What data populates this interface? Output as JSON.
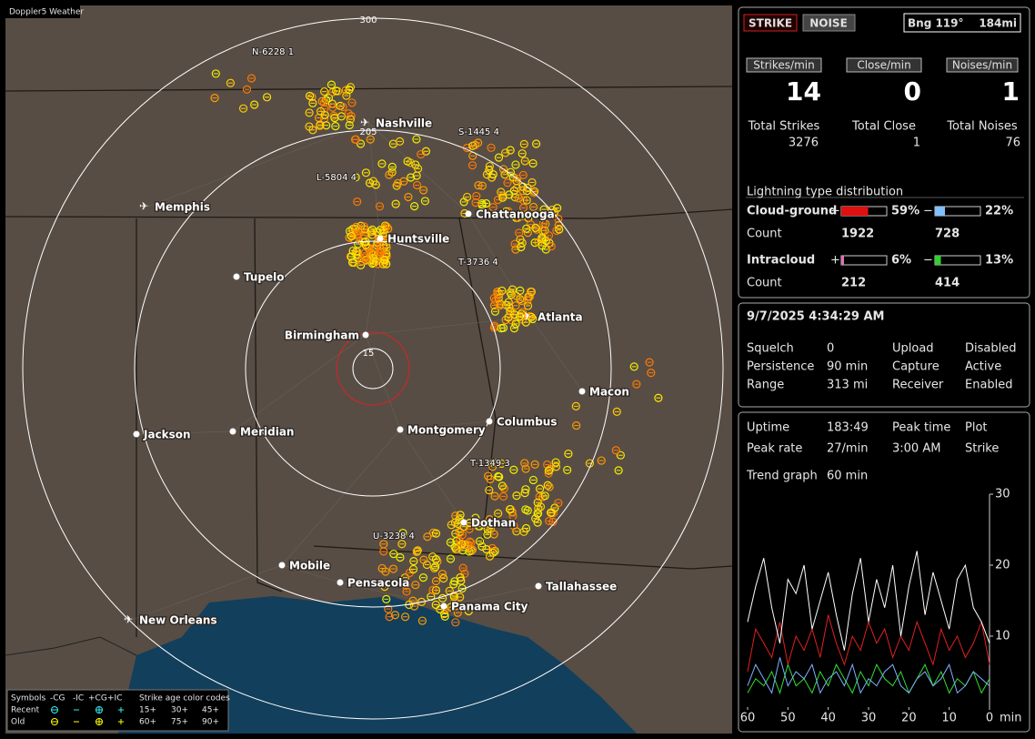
{
  "map": {
    "title": "Doppler5 Weather",
    "rings": [
      "300",
      "205",
      "15"
    ],
    "cities": [
      "Nashville",
      "Memphis",
      "Huntsville",
      "Tupelo",
      "Chattanooga",
      "Atlanta",
      "Birmingham",
      "Macon",
      "Jackson",
      "Meridian",
      "Montgomery",
      "Columbus",
      "Dothan",
      "Mobile",
      "Pensacola",
      "Panama City",
      "Tallahassee",
      "New Orleans"
    ],
    "storms": [
      "N-6228 1",
      "S-1445 4",
      "L-5804 4",
      "T-3736 4",
      "T-1349 3",
      "U-3238 4"
    ],
    "legend": {
      "symbols": "Symbols",
      "types": [
        "-CG",
        "-IC",
        "+CG",
        "+IC"
      ],
      "age_title": "Strike age color codes",
      "rows": [
        "Recent",
        "Old"
      ],
      "recent_ages": [
        "15+",
        "30+",
        "45+"
      ],
      "old_ages": [
        "60+",
        "75+",
        "90+"
      ]
    }
  },
  "mode": {
    "strike": "STRIKE",
    "noise": "NOISE",
    "bearing": "Bng 119°",
    "distance": "184mi"
  },
  "rates": {
    "labels": [
      "Strikes/min",
      "Close/min",
      "Noises/min"
    ],
    "values": [
      14,
      0,
      1
    ]
  },
  "totals": {
    "labels": [
      "Total Strikes",
      "Total Close",
      "Total Noises"
    ],
    "values": [
      3276,
      1,
      76
    ]
  },
  "distribution": {
    "title": "Lightning type distribution",
    "signs": [
      "+",
      "−"
    ],
    "count_label": "Count",
    "rows": [
      {
        "label": "Cloud-ground",
        "pos": {
          "value": 59,
          "label": "59%"
        },
        "neg": {
          "value": 22,
          "label": "22%"
        },
        "counts": [
          1922,
          728
        ]
      },
      {
        "label": "Intracloud",
        "pos": {
          "value": 6,
          "label": "6%"
        },
        "neg": {
          "value": 13,
          "label": "13%"
        },
        "counts": [
          212,
          414
        ]
      }
    ]
  },
  "status": {
    "datetime": "9/7/2025 4:34:29 AM",
    "settings": [
      [
        "Squelch",
        "0",
        "Upload",
        "Disabled"
      ],
      [
        "Persistence",
        "90 min",
        "Capture",
        "Active"
      ],
      [
        "Range",
        "313 mi",
        "Receiver",
        "Enabled"
      ]
    ]
  },
  "stats": {
    "rows": [
      [
        "Uptime",
        "183:49",
        "Peak time",
        "Plot"
      ],
      [
        "Peak rate",
        "27/min",
        "3:00 AM",
        "Strike"
      ]
    ],
    "trend_label": "Trend graph",
    "trend_span": "60 min"
  },
  "trend": {
    "ylim": [
      0,
      30
    ],
    "yticks": [
      10,
      20,
      30
    ],
    "xlim": [
      60,
      0
    ],
    "xticks": [
      60,
      50,
      40,
      30,
      20,
      10,
      0
    ],
    "x_unit": "min",
    "x": [
      60,
      58,
      56,
      54,
      52,
      50,
      48,
      46,
      44,
      42,
      40,
      38,
      36,
      34,
      32,
      30,
      28,
      26,
      24,
      22,
      20,
      18,
      16,
      14,
      12,
      10,
      8,
      6,
      4,
      2,
      0
    ],
    "series": [
      {
        "color": "#ffffff",
        "values": [
          12,
          17,
          21,
          14,
          9,
          18,
          16,
          20,
          11,
          15,
          19,
          13,
          8,
          16,
          21,
          12,
          18,
          14,
          20,
          10,
          17,
          22,
          13,
          19,
          15,
          11,
          18,
          20,
          14,
          12,
          9
        ]
      },
      {
        "color": "#e02020",
        "values": [
          5,
          11,
          9,
          7,
          12,
          6,
          10,
          8,
          11,
          7,
          13,
          9,
          6,
          10,
          8,
          12,
          9,
          11,
          7,
          10,
          8,
          12,
          9,
          6,
          11,
          8,
          10,
          7,
          9,
          12,
          6
        ]
      },
      {
        "color": "#80b0ff",
        "values": [
          3,
          6,
          4,
          2,
          7,
          3,
          5,
          4,
          6,
          2,
          4,
          5,
          3,
          6,
          2,
          4,
          3,
          5,
          6,
          3,
          2,
          4,
          5,
          3,
          4,
          6,
          2,
          3,
          5,
          4,
          3
        ]
      },
      {
        "color": "#30e030",
        "values": [
          2,
          4,
          3,
          5,
          2,
          6,
          3,
          4,
          2,
          5,
          3,
          6,
          4,
          2,
          5,
          3,
          6,
          4,
          3,
          5,
          2,
          4,
          6,
          3,
          5,
          2,
          4,
          3,
          5,
          2,
          4
        ]
      }
    ]
  }
}
